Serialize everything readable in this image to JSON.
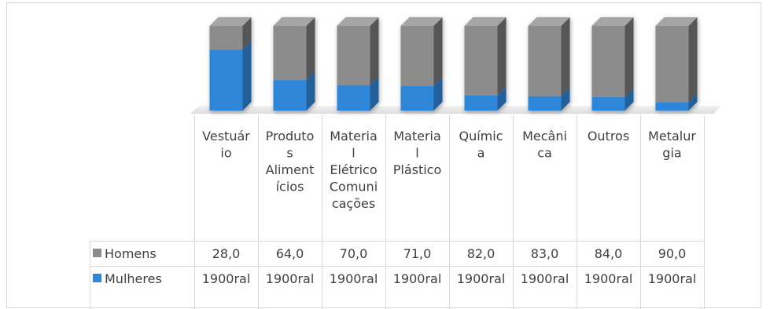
{
  "chart_data": {
    "type": "bar",
    "stacked": true,
    "three_d": true,
    "categories": [
      [
        "Vestuár",
        "io"
      ],
      [
        "Produto",
        "s",
        "Aliment",
        "ícios"
      ],
      [
        "Materia",
        "l",
        "Elétrico",
        "Comuni",
        "cações"
      ],
      [
        "Materia",
        "l",
        "Plástico"
      ],
      [
        "Químic",
        "a"
      ],
      [
        "Mecâni",
        "ca"
      ],
      [
        "Outros"
      ],
      [
        "Metalur",
        "gia"
      ]
    ],
    "series": [
      {
        "name": "Homens",
        "color": "#8c8c8c",
        "values": [
          28,
          64,
          70,
          71,
          82,
          83,
          84,
          90
        ],
        "labels": [
          "28,0",
          "64,0",
          "70,0",
          "71,0",
          "82,0",
          "83,0",
          "84,0",
          "90,0"
        ]
      },
      {
        "name": "Mulheres",
        "color": "#2e86d9",
        "values": [
          72,
          36,
          30,
          29,
          18,
          17,
          16,
          10
        ],
        "labels": [
          "1900ral",
          "1900ral",
          "1900ral",
          "1900ral",
          "1900ral",
          "1900ral",
          "1900ral",
          "1900ral"
        ]
      }
    ],
    "ylim": [
      0,
      100
    ],
    "grid": false,
    "legend": "data-table"
  }
}
